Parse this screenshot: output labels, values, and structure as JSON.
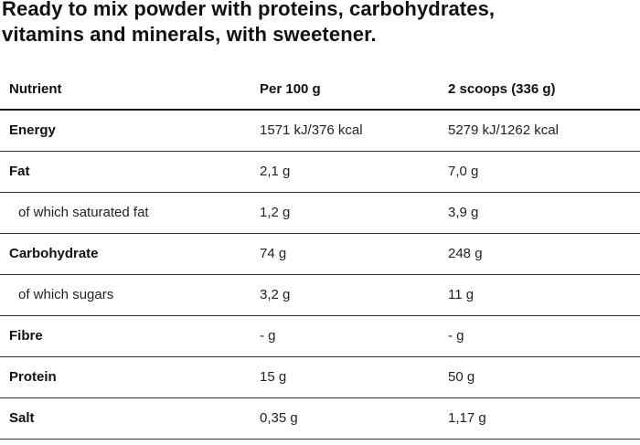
{
  "title": {
    "line1": "Ready to mix powder with proteins, carbohydrates,",
    "line2": "vitamins and minerals, with sweetener."
  },
  "table": {
    "headers": [
      "Nutrient",
      "Per 100 g",
      "2 scoops (336 g)"
    ],
    "rows": [
      {
        "name": "Energy",
        "per100": "1571 kJ/376 kcal",
        "serving": "5279 kJ/1262 kcal",
        "style": "bold"
      },
      {
        "name": "Fat",
        "per100": "2,1 g",
        "serving": "7,0 g",
        "style": "bold"
      },
      {
        "name": "of which saturated fat",
        "per100": "1,2 g",
        "serving": "3,9 g",
        "style": "sub"
      },
      {
        "name": "Carbohydrate",
        "per100": "74 g",
        "serving": "248 g",
        "style": "bold"
      },
      {
        "name": "of which sugars",
        "per100": "3,2 g",
        "serving": "11 g",
        "style": "sub"
      },
      {
        "name": "Fibre",
        "per100": "- g",
        "serving": "- g",
        "style": "bold"
      },
      {
        "name": "Protein",
        "per100": "15 g",
        "serving": "50 g",
        "style": "bold"
      },
      {
        "name": "Salt",
        "per100": "0,35 g",
        "serving": "1,17 g",
        "style": "bold"
      }
    ]
  }
}
